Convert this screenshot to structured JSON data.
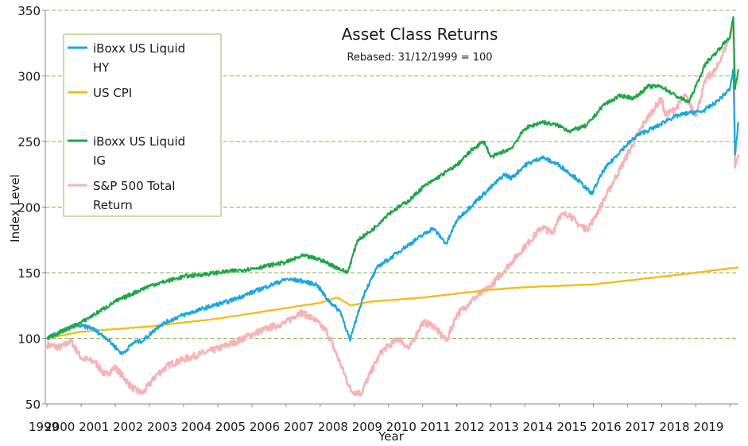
{
  "chart_data": {
    "type": "line",
    "title": "Asset Class Returns",
    "subtitle": "Rebased: 31/12/1999 = 100",
    "xlabel": "Year",
    "ylabel": "Index Level",
    "ylim": [
      50,
      350
    ],
    "yticks": [
      50,
      100,
      150,
      200,
      250,
      300,
      350
    ],
    "xlim": [
      1999.95,
      2020.25
    ],
    "xticks": [
      "1999",
      "2000",
      "2001",
      "2002",
      "2003",
      "2004",
      "2005",
      "2006",
      "2007",
      "2008",
      "2009",
      "2010",
      "2011",
      "2012",
      "2013",
      "2014",
      "2015",
      "2016",
      "2017",
      "2018",
      "2019"
    ],
    "grid": "horizontal dashed",
    "legend_position": "top-left",
    "colors": {
      "hy": "#1ca7dc",
      "cpi": "#f2bd18",
      "ig": "#1fa648",
      "sp": "#f7b3b5",
      "grid": "#8ab04a",
      "legend_border": "#9bbb59"
    },
    "series": [
      {
        "name": "iBoxx US Liquid HY",
        "color": "#1ca7dc",
        "x": [
          2000.0,
          2000.5,
          2000.85,
          2001.3,
          2001.75,
          2002.2,
          2002.55,
          2002.8,
          2003.3,
          2003.9,
          2004.5,
          2005.0,
          2005.3,
          2005.8,
          2006.5,
          2007.0,
          2007.4,
          2007.9,
          2008.2,
          2008.6,
          2008.88,
          2009.0,
          2009.3,
          2009.7,
          2010.0,
          2010.4,
          2010.8,
          2011.3,
          2011.7,
          2012.0,
          2012.5,
          2013.0,
          2013.4,
          2013.6,
          2014.0,
          2014.5,
          2015.0,
          2015.5,
          2015.95,
          2016.3,
          2016.8,
          2017.3,
          2017.9,
          2018.2,
          2018.5,
          2018.85,
          2019.2,
          2019.6,
          2020.0,
          2020.1,
          2020.15,
          2020.25
        ],
        "values": [
          100,
          106,
          110,
          108,
          100,
          88,
          97,
          98,
          110,
          117,
          122,
          126,
          128,
          133,
          140,
          145,
          144,
          141,
          130,
          120,
          98,
          110,
          135,
          155,
          160,
          168,
          175,
          184,
          172,
          190,
          203,
          215,
          225,
          222,
          232,
          238,
          232,
          222,
          210,
          228,
          243,
          255,
          262,
          267,
          270,
          272,
          273,
          280,
          290,
          305,
          240,
          265
        ]
      },
      {
        "name": "US CPI",
        "color": "#f2bd18",
        "x": [
          2000.0,
          2001.0,
          2002.0,
          2003.0,
          2004.0,
          2005.0,
          2006.0,
          2007.0,
          2008.0,
          2008.5,
          2008.9,
          2009.5,
          2010.0,
          2011.0,
          2012.0,
          2013.0,
          2014.0,
          2015.0,
          2016.0,
          2017.0,
          2018.0,
          2019.0,
          2020.25
        ],
        "values": [
          100,
          105,
          107,
          109,
          112,
          115,
          119,
          123,
          127,
          131,
          125,
          128,
          129,
          131,
          134,
          137,
          139,
          140,
          141,
          144,
          147,
          150,
          154
        ]
      },
      {
        "name": "iBoxx US Liquid IG",
        "color": "#1fa648",
        "x": [
          2000.0,
          2001.0,
          2002.0,
          2003.0,
          2004.0,
          2005.0,
          2006.0,
          2007.0,
          2007.5,
          2008.0,
          2008.8,
          2009.1,
          2009.5,
          2010.0,
          2010.6,
          2011.0,
          2012.0,
          2012.5,
          2012.8,
          2013.0,
          2013.6,
          2014.0,
          2014.5,
          2015.0,
          2015.3,
          2015.8,
          2016.3,
          2016.8,
          2017.2,
          2017.6,
          2018.0,
          2018.4,
          2018.8,
          2019.0,
          2019.3,
          2019.6,
          2020.0,
          2020.1,
          2020.15,
          2020.25
        ],
        "values": [
          100,
          112,
          128,
          140,
          147,
          150,
          153,
          158,
          163,
          160,
          150,
          175,
          182,
          195,
          205,
          215,
          232,
          245,
          250,
          238,
          245,
          260,
          265,
          262,
          258,
          262,
          278,
          285,
          283,
          292,
          292,
          285,
          280,
          292,
          310,
          318,
          330,
          345,
          290,
          305
        ]
      },
      {
        "name": "S&P 500 Total Return",
        "color": "#f7b3b5",
        "x": [
          2000.0,
          2000.4,
          2000.7,
          2001.0,
          2001.4,
          2001.7,
          2002.0,
          2002.5,
          2002.8,
          2003.2,
          2003.6,
          2004.0,
          2004.5,
          2005.0,
          2005.5,
          2006.0,
          2006.5,
          2007.0,
          2007.4,
          2007.8,
          2008.2,
          2008.6,
          2008.9,
          2009.2,
          2009.5,
          2009.8,
          2010.3,
          2010.6,
          2011.0,
          2011.3,
          2011.7,
          2012.0,
          2012.5,
          2013.0,
          2013.5,
          2014.0,
          2014.5,
          2014.8,
          2015.0,
          2015.3,
          2015.5,
          2015.8,
          2016.0,
          2016.3,
          2016.6,
          2017.0,
          2017.5,
          2018.0,
          2018.1,
          2018.4,
          2018.7,
          2019.0,
          2019.3,
          2019.6,
          2020.0,
          2020.1,
          2020.15,
          2020.25
        ],
        "values": [
          95,
          93,
          98,
          85,
          82,
          72,
          78,
          62,
          58,
          72,
          80,
          84,
          88,
          92,
          97,
          103,
          108,
          112,
          120,
          115,
          105,
          80,
          60,
          58,
          75,
          90,
          100,
          92,
          112,
          110,
          98,
          118,
          130,
          140,
          155,
          170,
          185,
          180,
          193,
          195,
          188,
          183,
          190,
          205,
          220,
          240,
          265,
          283,
          270,
          275,
          285,
          270,
          298,
          305,
          330,
          340,
          230,
          240
        ]
      }
    ]
  }
}
